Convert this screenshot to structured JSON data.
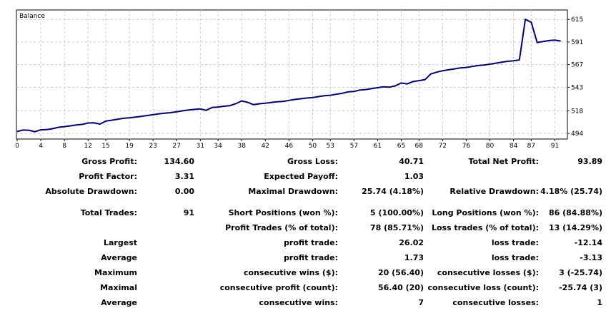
{
  "chart_data": {
    "type": "line",
    "title": "Balance",
    "ylim": [
      488,
      625
    ],
    "xlim": [
      0,
      93
    ],
    "x_ticks": [
      0,
      4,
      8,
      12,
      15,
      19,
      23,
      27,
      31,
      34,
      38,
      42,
      46,
      50,
      53,
      57,
      61,
      65,
      68,
      72,
      76,
      80,
      84,
      87,
      91
    ],
    "y_ticks": [
      494,
      518,
      543,
      567,
      591,
      615
    ],
    "grid": true,
    "line_color": "#000080",
    "series": [
      {
        "x": [
          0,
          1,
          2,
          3,
          4,
          5,
          6,
          7,
          8,
          9,
          10,
          11,
          12,
          13,
          14,
          15,
          16,
          17,
          18,
          19,
          20,
          21,
          22,
          23,
          24,
          25,
          26,
          27,
          28,
          29,
          30,
          31,
          32,
          33,
          34,
          35,
          36,
          37,
          38,
          39,
          40,
          41,
          42,
          43,
          44,
          45,
          46,
          47,
          48,
          49,
          50,
          51,
          52,
          53,
          54,
          55,
          56,
          57,
          58,
          59,
          60,
          61,
          62,
          63,
          64,
          65,
          66,
          67,
          68,
          69,
          70,
          71,
          72,
          73,
          74,
          75,
          76,
          77,
          78,
          79,
          80,
          81,
          82,
          83,
          84,
          85,
          86,
          87,
          88,
          89,
          90,
          91,
          92
        ],
        "values": [
          496.0,
          497.5,
          497.2,
          495.8,
          497.8,
          498.0,
          499.0,
          500.5,
          501.2,
          502.0,
          503.0,
          503.5,
          505.0,
          505.2,
          503.8,
          507.0,
          508.0,
          509.0,
          510.0,
          510.5,
          511.2,
          512.0,
          513.0,
          513.8,
          514.8,
          515.5,
          516.0,
          517.0,
          518.0,
          518.8,
          519.5,
          520.0,
          518.5,
          521.5,
          522.0,
          522.8,
          523.5,
          525.5,
          528.5,
          527.0,
          524.5,
          525.5,
          526.0,
          526.8,
          527.5,
          528.0,
          529.0,
          530.0,
          530.8,
          531.5,
          532.0,
          533.0,
          534.0,
          534.5,
          535.5,
          536.5,
          538.0,
          538.5,
          540.0,
          540.5,
          541.5,
          542.5,
          543.5,
          543.0,
          544.5,
          547.5,
          546.5,
          549.0,
          550.0,
          551.0,
          557.0,
          559.0,
          560.5,
          561.5,
          562.5,
          563.5,
          564.0,
          565.0,
          566.0,
          566.5,
          567.5,
          568.5,
          569.5,
          570.5,
          571.0,
          572.0,
          615.0,
          612.0,
          590.5,
          591.5,
          592.5,
          593.0,
          592.0
        ]
      }
    ]
  },
  "stats": {
    "row1": {
      "gross_profit_label": "Gross Profit:",
      "gross_profit": "134.60",
      "gross_loss_label": "Gross Loss:",
      "gross_loss": "40.71",
      "total_net_profit_label": "Total Net Profit:",
      "total_net_profit": "93.89"
    },
    "row2": {
      "profit_factor_label": "Profit Factor:",
      "profit_factor": "3.31",
      "expected_payoff_label": "Expected Payoff:",
      "expected_payoff": "1.03"
    },
    "row3": {
      "absolute_drawdown_label": "Absolute Drawdown:",
      "absolute_drawdown": "0.00",
      "maximal_drawdown_label": "Maximal Drawdown:",
      "maximal_drawdown": "25.74 (4.18%)",
      "relative_drawdown_label": "Relative Drawdown:",
      "relative_drawdown": "4.18% (25.74)"
    },
    "row4": {
      "total_trades_label": "Total Trades:",
      "total_trades": "91",
      "short_positions_label": "Short Positions (won %):",
      "short_positions": "5 (100.00%)",
      "long_positions_label": "Long Positions (won %):",
      "long_positions": "86 (84.88%)"
    },
    "row5": {
      "profit_trades_label": "Profit Trades (% of total):",
      "profit_trades": "78 (85.71%)",
      "loss_trades_label": "Loss trades (% of total):",
      "loss_trades": "13 (14.29%)"
    },
    "row6": {
      "left_label": "Largest",
      "profit_trade_label": "profit trade:",
      "profit_trade": "26.02",
      "loss_trade_label": "loss trade:",
      "loss_trade": "-12.14"
    },
    "row7": {
      "left_label": "Average",
      "profit_trade_label": "profit trade:",
      "profit_trade": "1.73",
      "loss_trade_label": "loss trade:",
      "loss_trade": "-3.13"
    },
    "row8": {
      "left_label": "Maximum",
      "cons_wins_label": "consecutive wins ($):",
      "cons_wins": "20 (56.40)",
      "cons_losses_label": "consecutive losses ($):",
      "cons_losses": "3 (-25.74)"
    },
    "row9": {
      "left_label": "Maximal",
      "cons_profit_label": "consecutive profit (count):",
      "cons_profit": "56.40 (20)",
      "cons_loss_label": "consecutive loss (count):",
      "cons_loss": "-25.74 (3)"
    },
    "row10": {
      "left_label": "Average",
      "cons_wins_label": "consecutive wins:",
      "cons_wins": "7",
      "cons_losses_label": "consecutive losses:",
      "cons_losses": "1"
    }
  }
}
